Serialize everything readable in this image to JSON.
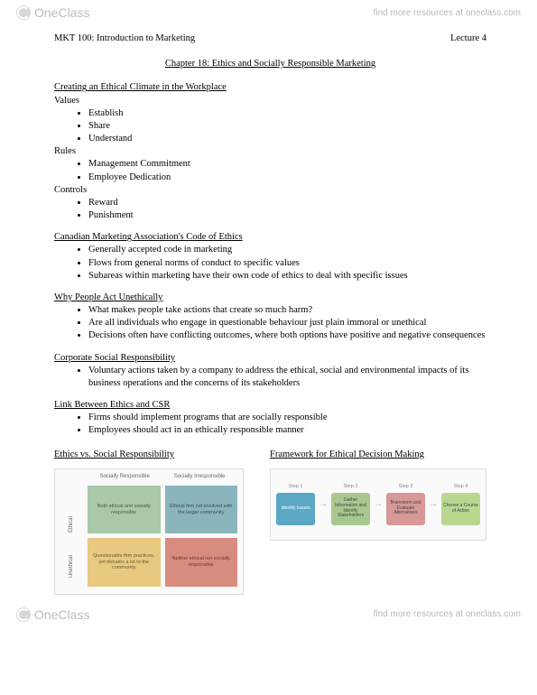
{
  "branding": {
    "logo_text": "OneClass",
    "find_more": "find more resources at oneclass.com"
  },
  "header": {
    "course": "MKT 100: Introduction to Marketing",
    "lecture": "Lecture 4"
  },
  "chapter_title": "Chapter 18: Ethics and Socially Responsible Marketing",
  "s1": {
    "title": "Creating an Ethical Climate in the Workplace",
    "g1_label": "Values",
    "g1_items": [
      "Establish",
      "Share",
      "Understand"
    ],
    "g2_label": "Rules",
    "g2_items": [
      "Management Commitment",
      "Employee Dedication"
    ],
    "g3_label": "Controls",
    "g3_items": [
      "Reward",
      "Punishment"
    ]
  },
  "s2": {
    "title": "Canadian Marketing Association's Code of Ethics",
    "items": [
      "Generally accepted code in marketing",
      "Flows from general norms of conduct to specific values",
      "Subareas within marketing have their own code of ethics to deal with specific issues"
    ]
  },
  "s3": {
    "title": "Why People Act Unethically",
    "items": [
      "What makes people take actions that create so much harm?",
      "Are all individuals who engage in questionable behaviour just plain immoral or unethical",
      "Decisions often have conflicting outcomes, where both options have positive and negative consequences"
    ]
  },
  "s4": {
    "title": "Corporate Social Responsibility",
    "items": [
      "Voluntary actions taken by a company to address the ethical, social and environmental impacts of its business operations and the concerns of its stakeholders"
    ]
  },
  "s5": {
    "title": "Link Between Ethics and CSR",
    "items": [
      "Firms should implement programs that are socially responsible",
      "Employees should act in an ethically responsible manner"
    ]
  },
  "left_diagram": {
    "title": "Ethics vs. Social Responsibility",
    "col_labels": [
      "Socially Responsible",
      "Socially Irresponsible"
    ],
    "row_labels": [
      "Ethical",
      "Unethical"
    ],
    "cells": [
      "Both ethical and socially responsible",
      "Ethical firm not involved with the larger community",
      "Questionable firm practices, yet donates a lot to the community",
      "Neither ethical nor socially responsible"
    ],
    "cell_colors": [
      "#a8c8a8",
      "#8bb5bd",
      "#e8c980",
      "#d88b7f"
    ],
    "background": "#fafafa",
    "border_color": "#dddddd",
    "font_size_labels": 6,
    "font_size_cells": 5.5
  },
  "right_diagram": {
    "title": "Framework for Ethical Decision Making",
    "steps": [
      {
        "label": "Step 1",
        "text": "Identify Issues",
        "color": "#5aa8c4"
      },
      {
        "label": "Step 2",
        "text": "Gather Information and Identify Stakeholders",
        "color": "#a8c890"
      },
      {
        "label": "Step 3",
        "text": "Brainstorm and Evaluate Alternatives",
        "color": "#d89898"
      },
      {
        "label": "Step 4",
        "text": "Choose a Course of Action",
        "color": "#b8d890"
      }
    ],
    "arrow_glyph": "→",
    "background": "#fafafa",
    "border_color": "#dddddd",
    "font_size_step_label": 5.5,
    "font_size_step_text": 5
  }
}
